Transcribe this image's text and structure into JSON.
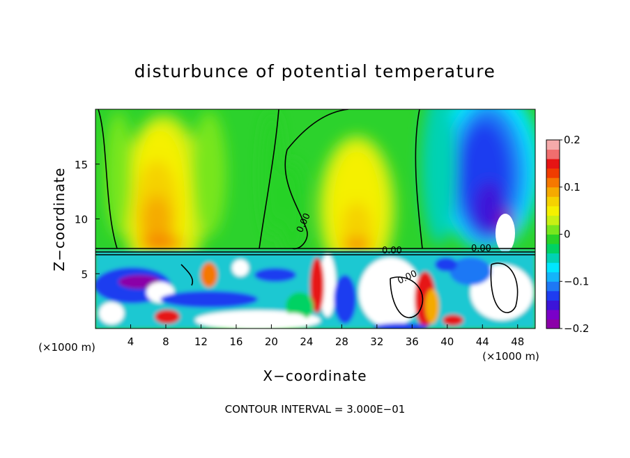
{
  "chart_data": {
    "type": "heatmap",
    "title": "disturbunce of potential temperature",
    "xlabel": "X−coordinate",
    "ylabel": "Z−coordinate",
    "x_unit": "(×1000 m)",
    "x_unit_right": "(×1000 m)",
    "xlim": [
      0,
      50
    ],
    "ylim": [
      0,
      20
    ],
    "x_ticks": [
      4,
      8,
      12,
      16,
      20,
      24,
      28,
      32,
      36,
      40,
      44,
      48
    ],
    "y_ticks": [
      5,
      10,
      15
    ],
    "contour_interval_text": "CONTOUR INTERVAL = 3.000E−01",
    "contour_label": "0.00",
    "colorbar": {
      "min": -0.2,
      "max": 0.2,
      "tick_values": [
        0.2,
        0.1,
        0,
        -0.1,
        -0.2
      ],
      "tick_labels": [
        "0.2",
        "0.1",
        "0",
        "−0.1",
        "−0.2"
      ],
      "colors": [
        "#8b00a8",
        "#7a00c8",
        "#3c14d8",
        "#1e3cf0",
        "#1e78f5",
        "#14b4fa",
        "#00e6ff",
        "#00d2b4",
        "#00d264",
        "#28d228",
        "#78e61e",
        "#c8f014",
        "#f5f000",
        "#f5d200",
        "#f5aa00",
        "#f57800",
        "#f03c00",
        "#e61414",
        "#f06e6e",
        "#f5aaaa"
      ]
    }
  }
}
